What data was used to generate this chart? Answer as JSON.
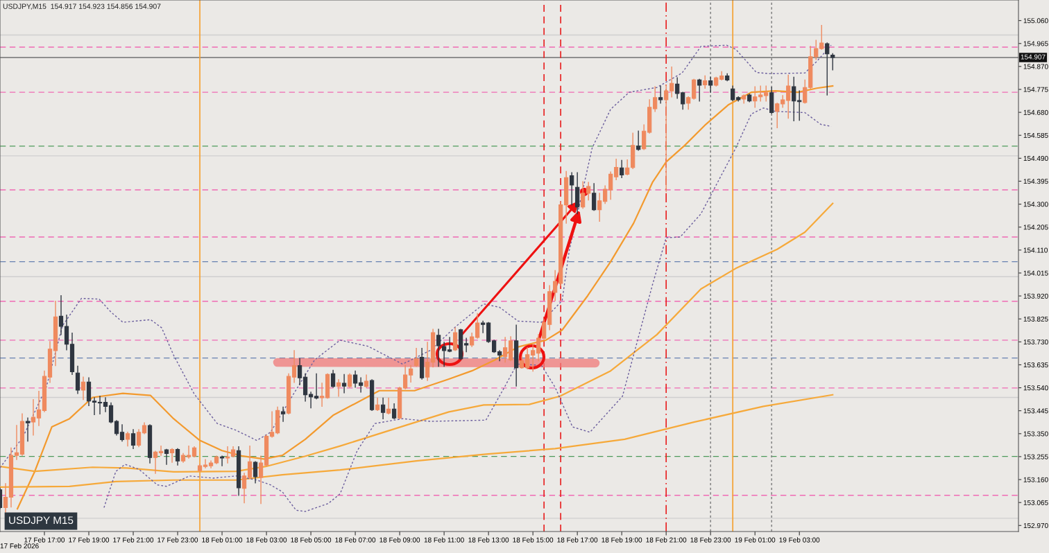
{
  "chart_data": {
    "type": "candlestick",
    "title": "USDJPY,M15  154.917 154.923 154.856 154.907",
    "annotations": [
      "USDJPY M15",
      "17 Feb 2026"
    ],
    "x": [
      "2026-02-17T15:00",
      "2026-02-17T15:15",
      "2026-02-17T15:30",
      "2026-02-17T15:45",
      "2026-02-17T16:00",
      "2026-02-17T16:15",
      "2026-02-17T16:30",
      "2026-02-17T16:45",
      "2026-02-17T17:00",
      "2026-02-17T17:15",
      "2026-02-17T17:30",
      "2026-02-17T17:45",
      "2026-02-17T18:00",
      "2026-02-17T18:15",
      "2026-02-17T18:30",
      "2026-02-17T18:45",
      "2026-02-17T19:00",
      "2026-02-17T19:15",
      "2026-02-17T19:30",
      "2026-02-17T19:45",
      "2026-02-17T20:00",
      "2026-02-17T20:15",
      "2026-02-17T20:30",
      "2026-02-17T20:45",
      "2026-02-17T21:00",
      "2026-02-17T21:15",
      "2026-02-17T21:30",
      "2026-02-17T21:45",
      "2026-02-17T22:00",
      "2026-02-17T22:15",
      "2026-02-17T22:30",
      "2026-02-17T22:45",
      "2026-02-17T23:00",
      "2026-02-17T23:15",
      "2026-02-17T23:30",
      "2026-02-17T23:45",
      "2026-02-18T00:00",
      "2026-02-18T00:15",
      "2026-02-18T00:30",
      "2026-02-18T00:45",
      "2026-02-18T01:00",
      "2026-02-18T01:15",
      "2026-02-18T01:30",
      "2026-02-18T01:45",
      "2026-02-18T02:00",
      "2026-02-18T02:15",
      "2026-02-18T02:30",
      "2026-02-18T02:45",
      "2026-02-18T03:00",
      "2026-02-18T03:15",
      "2026-02-18T03:30",
      "2026-02-18T03:45",
      "2026-02-18T04:00",
      "2026-02-18T04:15",
      "2026-02-18T04:30",
      "2026-02-18T04:45",
      "2026-02-18T05:00",
      "2026-02-18T05:15",
      "2026-02-18T05:30",
      "2026-02-18T05:45",
      "2026-02-18T06:00",
      "2026-02-18T06:15",
      "2026-02-18T06:30",
      "2026-02-18T06:45",
      "2026-02-18T07:00",
      "2026-02-18T07:15",
      "2026-02-18T07:30",
      "2026-02-18T07:45",
      "2026-02-18T08:00",
      "2026-02-18T08:15",
      "2026-02-18T08:30",
      "2026-02-18T08:45",
      "2026-02-18T09:00",
      "2026-02-18T09:15",
      "2026-02-18T09:30",
      "2026-02-18T09:45",
      "2026-02-18T10:00",
      "2026-02-18T10:15",
      "2026-02-18T10:30",
      "2026-02-18T10:45",
      "2026-02-18T11:00",
      "2026-02-18T11:15",
      "2026-02-18T11:30",
      "2026-02-18T11:45",
      "2026-02-18T12:00",
      "2026-02-18T12:15",
      "2026-02-18T12:30",
      "2026-02-18T12:45",
      "2026-02-18T13:00",
      "2026-02-18T13:15",
      "2026-02-18T13:30",
      "2026-02-18T13:45",
      "2026-02-18T14:00",
      "2026-02-18T14:15",
      "2026-02-18T14:30",
      "2026-02-18T14:45",
      "2026-02-18T15:00",
      "2026-02-18T15:15",
      "2026-02-18T15:30",
      "2026-02-18T15:45",
      "2026-02-18T16:00",
      "2026-02-18T16:15",
      "2026-02-18T16:30",
      "2026-02-18T16:45",
      "2026-02-18T17:00",
      "2026-02-18T17:15",
      "2026-02-18T17:30",
      "2026-02-18T17:45",
      "2026-02-18T18:00",
      "2026-02-18T18:15",
      "2026-02-18T18:30",
      "2026-02-18T18:45",
      "2026-02-18T19:00",
      "2026-02-18T19:15",
      "2026-02-18T19:30",
      "2026-02-18T19:45",
      "2026-02-18T20:00",
      "2026-02-18T20:15",
      "2026-02-18T20:30",
      "2026-02-18T20:45",
      "2026-02-18T21:00",
      "2026-02-18T21:15",
      "2026-02-18T21:30",
      "2026-02-18T21:45",
      "2026-02-18T22:00",
      "2026-02-18T22:15",
      "2026-02-18T22:30",
      "2026-02-18T22:45",
      "2026-02-18T23:00",
      "2026-02-18T23:15",
      "2026-02-18T23:30",
      "2026-02-18T23:45",
      "2026-02-19T00:00",
      "2026-02-19T00:15",
      "2026-02-19T00:30",
      "2026-02-19T00:45",
      "2026-02-19T01:00",
      "2026-02-19T01:15",
      "2026-02-19T01:30",
      "2026-02-19T01:45",
      "2026-02-19T02:00",
      "2026-02-19T02:15",
      "2026-02-19T02:30",
      "2026-02-19T02:45",
      "2026-02-19T03:00",
      "2026-02-19T03:15",
      "2026-02-19T03:30",
      "2026-02-19T03:45",
      "2026-02-19T04:00",
      "2026-02-19T04:15",
      "2026-02-19T04:30"
    ],
    "ohlc": [
      [
        153.118,
        153.125,
        153.04,
        153.044
      ],
      [
        153.044,
        153.143,
        153.025,
        153.087
      ],
      [
        153.087,
        153.291,
        153.047,
        153.26
      ],
      [
        153.26,
        153.384,
        153.243,
        153.271
      ],
      [
        153.265,
        153.432,
        153.26,
        153.401
      ],
      [
        153.401,
        153.415,
        153.319,
        153.395
      ],
      [
        153.398,
        153.491,
        153.344,
        153.418
      ],
      [
        153.415,
        153.525,
        153.384,
        153.449
      ],
      [
        153.446,
        153.609,
        153.441,
        153.587
      ],
      [
        153.584,
        153.731,
        153.562,
        153.7
      ],
      [
        153.694,
        153.898,
        153.632,
        153.833
      ],
      [
        153.836,
        153.921,
        153.76,
        153.794
      ],
      [
        153.794,
        153.841,
        153.697,
        153.72
      ],
      [
        153.72,
        153.766,
        153.595,
        153.606
      ],
      [
        153.601,
        153.629,
        153.516,
        153.53
      ],
      [
        153.53,
        153.584,
        153.491,
        153.564
      ],
      [
        153.564,
        153.581,
        153.466,
        153.485
      ],
      [
        153.485,
        153.499,
        153.429,
        153.48
      ],
      [
        153.48,
        153.505,
        153.432,
        153.477
      ],
      [
        153.48,
        153.499,
        153.441,
        153.463
      ],
      [
        153.466,
        153.477,
        153.395,
        153.398
      ],
      [
        153.401,
        153.404,
        153.344,
        153.35
      ],
      [
        153.356,
        153.387,
        153.319,
        153.325
      ],
      [
        153.327,
        153.356,
        153.299,
        153.35
      ],
      [
        153.35,
        153.367,
        153.288,
        153.302
      ],
      [
        153.302,
        153.367,
        153.296,
        153.356
      ],
      [
        153.353,
        153.395,
        153.35,
        153.384
      ],
      [
        153.384,
        153.387,
        153.229,
        153.251
      ],
      [
        153.251,
        153.277,
        153.186,
        153.274
      ],
      [
        153.271,
        153.299,
        153.26,
        153.277
      ],
      [
        153.283,
        153.285,
        153.223,
        153.268
      ],
      [
        153.271,
        153.288,
        153.232,
        153.285
      ],
      [
        153.285,
        153.288,
        153.22,
        153.237
      ],
      [
        153.237,
        153.268,
        153.232,
        153.26
      ],
      [
        153.254,
        153.299,
        153.249,
        153.26
      ],
      [
        153.257,
        153.296,
        153.254,
        153.291
      ],
      [
        153.197,
        153.223,
        153.194,
        153.217
      ],
      [
        153.214,
        153.243,
        153.209,
        153.22
      ],
      [
        153.217,
        153.237,
        153.209,
        153.229
      ],
      [
        153.229,
        153.257,
        153.226,
        153.254
      ],
      [
        153.254,
        153.257,
        153.217,
        153.249
      ],
      [
        153.249,
        153.296,
        153.229,
        153.254
      ],
      [
        153.257,
        153.296,
        153.254,
        153.283
      ],
      [
        153.28,
        153.296,
        153.095,
        153.126
      ],
      [
        153.124,
        153.186,
        153.064,
        153.175
      ],
      [
        153.169,
        153.299,
        153.166,
        153.234
      ],
      [
        153.232,
        153.234,
        153.146,
        153.172
      ],
      [
        153.169,
        153.257,
        153.061,
        153.229
      ],
      [
        153.22,
        153.344,
        153.217,
        153.339
      ],
      [
        153.339,
        153.441,
        153.336,
        153.356
      ],
      [
        153.353,
        153.46,
        153.35,
        153.446
      ],
      [
        153.441,
        153.46,
        153.401,
        153.432
      ],
      [
        153.435,
        153.598,
        153.432,
        153.587
      ],
      [
        153.584,
        153.694,
        153.562,
        153.632
      ],
      [
        153.632,
        153.66,
        153.553,
        153.581
      ],
      [
        153.584,
        153.598,
        153.485,
        153.511
      ],
      [
        153.513,
        153.522,
        153.457,
        153.502
      ],
      [
        153.505,
        153.598,
        153.494,
        153.497
      ],
      [
        153.499,
        153.559,
        153.463,
        153.505
      ],
      [
        153.499,
        153.598,
        153.497,
        153.595
      ],
      [
        153.598,
        153.612,
        153.542,
        153.545
      ],
      [
        153.545,
        153.573,
        153.505,
        153.561
      ],
      [
        153.559,
        153.595,
        153.519,
        153.547
      ],
      [
        153.545,
        153.598,
        153.542,
        153.593
      ],
      [
        153.593,
        153.609,
        153.542,
        153.559
      ],
      [
        153.561,
        153.581,
        153.522,
        153.55
      ],
      [
        153.545,
        153.593,
        153.542,
        153.567
      ],
      [
        153.57,
        153.573,
        153.446,
        153.449
      ],
      [
        153.449,
        153.497,
        153.446,
        153.469
      ],
      [
        153.469,
        153.497,
        153.412,
        153.438
      ],
      [
        153.435,
        153.497,
        153.432,
        153.452
      ],
      [
        153.452,
        153.474,
        153.412,
        153.415
      ],
      [
        153.415,
        153.542,
        153.412,
        153.539
      ],
      [
        153.539,
        153.632,
        153.536,
        153.593
      ],
      [
        153.593,
        153.632,
        153.564,
        153.618
      ],
      [
        153.632,
        153.703,
        153.629,
        153.66
      ],
      [
        153.666,
        153.703,
        153.576,
        153.581
      ],
      [
        153.584,
        153.728,
        153.57,
        153.646
      ],
      [
        153.646,
        153.782,
        153.626,
        153.768
      ],
      [
        153.757,
        153.782,
        153.629,
        153.714
      ],
      [
        153.711,
        153.728,
        153.629,
        153.694
      ],
      [
        153.697,
        153.748,
        153.689,
        153.691
      ],
      [
        153.697,
        153.788,
        153.694,
        153.768
      ],
      [
        153.78,
        153.782,
        153.657,
        153.66
      ],
      [
        153.723,
        153.745,
        153.689,
        153.717
      ],
      [
        153.717,
        153.766,
        153.711,
        153.751
      ],
      [
        153.748,
        153.847,
        153.745,
        153.808
      ],
      [
        153.808,
        153.816,
        153.768,
        153.802
      ],
      [
        153.808,
        153.81,
        153.728,
        153.731
      ],
      [
        153.734,
        153.737,
        153.686,
        153.689
      ],
      [
        153.689,
        153.694,
        153.652,
        153.675
      ],
      [
        153.669,
        153.748,
        153.646,
        153.706
      ],
      [
        153.655,
        153.751,
        153.652,
        153.734
      ],
      [
        153.734,
        153.799,
        153.547,
        153.623
      ],
      [
        153.623,
        153.669,
        153.621,
        153.652
      ],
      [
        153.623,
        153.706,
        153.618,
        153.677
      ],
      [
        153.675,
        153.717,
        153.609,
        153.694
      ],
      [
        153.683,
        153.76,
        153.652,
        153.745
      ],
      [
        153.745,
        153.822,
        153.743,
        153.81
      ],
      [
        153.802,
        153.963,
        153.78,
        153.938
      ],
      [
        153.935,
        154.025,
        153.901,
        153.98
      ],
      [
        153.972,
        154.308,
        153.963,
        154.297
      ],
      [
        154.297,
        154.435,
        154.221,
        154.41
      ],
      [
        154.418,
        154.43,
        154.297,
        154.379
      ],
      [
        154.37,
        154.43,
        154.26,
        154.288
      ],
      [
        154.288,
        154.393,
        154.283,
        154.345
      ],
      [
        154.345,
        154.39,
        154.317,
        154.373
      ],
      [
        154.345,
        154.385,
        154.274,
        154.277
      ],
      [
        154.277,
        154.345,
        154.229,
        154.314
      ],
      [
        154.311,
        154.376,
        154.303,
        154.362
      ],
      [
        154.359,
        154.433,
        154.32,
        154.424
      ],
      [
        154.413,
        154.486,
        154.401,
        154.452
      ],
      [
        154.45,
        154.481,
        154.41,
        154.421
      ],
      [
        154.424,
        154.483,
        154.421,
        154.45
      ],
      [
        154.452,
        154.594,
        154.447,
        154.543
      ],
      [
        154.54,
        154.602,
        154.523,
        154.526
      ],
      [
        154.529,
        154.628,
        154.526,
        154.602
      ],
      [
        154.597,
        154.732,
        154.594,
        154.701
      ],
      [
        154.695,
        154.786,
        154.684,
        154.741
      ],
      [
        154.741,
        154.789,
        154.718,
        154.732
      ],
      [
        154.732,
        154.792,
        154.353,
        154.769
      ],
      [
        154.769,
        154.868,
        154.744,
        154.8
      ],
      [
        154.797,
        154.823,
        154.738,
        154.758
      ],
      [
        154.761,
        154.763,
        154.693,
        154.715
      ],
      [
        154.718,
        154.744,
        154.693,
        154.741
      ],
      [
        154.738,
        154.817,
        154.735,
        154.814
      ],
      [
        154.814,
        154.817,
        154.727,
        154.792
      ],
      [
        154.794,
        154.831,
        154.78,
        154.811
      ],
      [
        154.811,
        154.825,
        154.763,
        154.792
      ],
      [
        154.792,
        154.825,
        154.789,
        154.823
      ],
      [
        154.817,
        154.848,
        154.814,
        154.831
      ],
      [
        154.831,
        154.84,
        154.811,
        154.814
      ],
      [
        154.777,
        154.789,
        154.729,
        154.732
      ],
      [
        154.741,
        154.744,
        154.727,
        154.732
      ],
      [
        154.735,
        154.752,
        154.718,
        154.749
      ],
      [
        154.752,
        154.755,
        154.724,
        154.727
      ],
      [
        154.727,
        154.786,
        154.701,
        154.744
      ],
      [
        154.744,
        154.789,
        154.727,
        154.752
      ],
      [
        154.749,
        154.789,
        154.727,
        154.761
      ],
      [
        154.761,
        154.783,
        154.676,
        154.679
      ],
      [
        154.684,
        154.718,
        154.616,
        154.715
      ],
      [
        154.715,
        154.749,
        154.701,
        154.732
      ],
      [
        154.729,
        154.834,
        154.656,
        154.789
      ],
      [
        154.786,
        154.825,
        154.645,
        154.727
      ],
      [
        154.729,
        154.769,
        154.647,
        154.724
      ],
      [
        154.721,
        154.814,
        154.718,
        154.783
      ],
      [
        154.783,
        154.953,
        154.78,
        154.91
      ],
      [
        154.91,
        154.978,
        154.899,
        154.944
      ],
      [
        154.944,
        155.04,
        154.941,
        154.967
      ],
      [
        154.964,
        154.967,
        154.752,
        154.922
      ],
      [
        154.917,
        154.923,
        154.856,
        154.907
      ]
    ],
    "colors": [
      "#2f3640",
      "#ef8a5f",
      "#ef8a5f",
      "#ef8a5f",
      "#ef8a5f",
      "#2f3640",
      "#ef8a5f",
      "#ef8a5f",
      "#ef8a5f",
      "#ef8a5f",
      "#ef8a5f",
      "#2f3640",
      "#2f3640",
      "#2f3640",
      "#2f3640",
      "#ef8a5f",
      "#2f3640",
      "#2f3640",
      "#2f3640",
      "#2f3640",
      "#2f3640",
      "#2f3640",
      "#2f3640",
      "#ef8a5f",
      "#2f3640",
      "#ef8a5f",
      "#ef8a5f",
      "#2f3640",
      "#ef8a5f",
      "#ef8a5f",
      "#2f3640",
      "#ef8a5f",
      "#2f3640",
      "#ef8a5f",
      "#ef8a5f",
      "#ef8a5f",
      "#ef8a5f",
      "#ef8a5f",
      "#ef8a5f",
      "#ef8a5f",
      "#2f3640",
      "#ef8a5f",
      "#ef8a5f",
      "#2f3640",
      "#ef8a5f",
      "#ef8a5f",
      "#2f3640",
      "#ef8a5f",
      "#ef8a5f",
      "#ef8a5f",
      "#ef8a5f",
      "#2f3640",
      "#ef8a5f",
      "#ef8a5f",
      "#2f3640",
      "#2f3640",
      "#2f3640",
      "#2f3640",
      "#ef8a5f",
      "#ef8a5f",
      "#2f3640",
      "#ef8a5f",
      "#2f3640",
      "#ef8a5f",
      "#2f3640",
      "#2f3640",
      "#ef8a5f",
      "#2f3640",
      "#ef8a5f",
      "#2f3640",
      "#ef8a5f",
      "#2f3640",
      "#ef8a5f",
      "#ef8a5f",
      "#ef8a5f",
      "#ef8a5f",
      "#2f3640",
      "#ef8a5f",
      "#ef8a5f",
      "#2f3640",
      "#2f3640",
      "#2f3640",
      "#ef8a5f",
      "#2f3640",
      "#2f3640",
      "#ef8a5f",
      "#ef8a5f",
      "#2f3640",
      "#2f3640",
      "#2f3640",
      "#2f3640",
      "#ef8a5f",
      "#ef8a5f",
      "#2f3640",
      "#ef8a5f",
      "#ef8a5f",
      "#ef8a5f",
      "#ef8a5f",
      "#ef8a5f",
      "#ef8a5f",
      "#ef8a5f",
      "#ef8a5f",
      "#ef8a5f",
      "#2f3640",
      "#2f3640",
      "#ef8a5f",
      "#ef8a5f",
      "#2f3640",
      "#ef8a5f",
      "#ef8a5f",
      "#ef8a5f",
      "#ef8a5f",
      "#2f3640",
      "#ef8a5f",
      "#ef8a5f",
      "#2f3640",
      "#ef8a5f",
      "#ef8a5f",
      "#ef8a5f",
      "#2f3640",
      "#ef8a5f",
      "#ef8a5f",
      "#2f3640",
      "#2f3640",
      "#ef8a5f",
      "#ef8a5f",
      "#2f3640",
      "#ef8a5f",
      "#2f3640",
      "#ef8a5f",
      "#ef8a5f",
      "#2f3640",
      "#2f3640",
      "#2f3640",
      "#ef8a5f",
      "#2f3640",
      "#ef8a5f",
      "#ef8a5f",
      "#ef8a5f",
      "#2f3640",
      "#ef8a5f",
      "#ef8a5f",
      "#ef8a5f",
      "#2f3640",
      "#2f3640",
      "#ef8a5f",
      "#ef8a5f",
      "#ef8a5f",
      "#ef8a5f",
      "#2f3640",
      "#2f3640"
    ],
    "series": [
      {
        "type": "line",
        "color": "#f39a2e",
        "line_style": "solid",
        "x": [
          "2026-02-17T15:47",
          "2026-02-17T16:34",
          "2026-02-17T17:20",
          "2026-02-17T18:08",
          "2026-02-17T19:10",
          "2026-02-17T20:32",
          "2026-02-17T21:47",
          "2026-02-17T22:49",
          "2026-02-18T00:00",
          "2026-02-18T01:00",
          "2026-02-18T01:56",
          "2026-02-18T02:53",
          "2026-02-18T03:43",
          "2026-02-18T04:45",
          "2026-02-18T06:00",
          "2026-02-18T08:05",
          "2026-02-18T09:40",
          "2026-02-18T11:13",
          "2026-02-18T12:15",
          "2026-02-18T13:17",
          "2026-02-18T14:20",
          "2026-02-18T15:35",
          "2026-02-18T16:19",
          "2026-02-18T17:28",
          "2026-02-18T18:30",
          "2026-02-18T19:32",
          "2026-02-18T20:23",
          "2026-02-18T21:00",
          "2026-02-18T21:50",
          "2026-02-18T22:47",
          "2026-02-18T23:49",
          "2026-02-19T00:50",
          "2026-02-19T01:55",
          "2026-02-19T02:56",
          "2026-02-19T03:47",
          "2026-02-19T04:30"
        ],
        "values": [
          153.039,
          153.194,
          153.378,
          153.412,
          153.5,
          153.517,
          153.508,
          153.412,
          153.322,
          153.28,
          153.257,
          153.245,
          153.26,
          153.327,
          153.426,
          153.528,
          153.528,
          153.576,
          153.61,
          153.655,
          153.709,
          153.737,
          153.779,
          153.921,
          154.062,
          154.221,
          154.39,
          154.475,
          154.543,
          154.63,
          154.712,
          154.763,
          154.769,
          154.763,
          154.78,
          154.789
        ]
      },
      {
        "type": "line",
        "color": "#f6a93a",
        "line_style": "solid",
        "x": [
          "2026-02-17T15:00",
          "2026-02-17T16:34",
          "2026-02-17T19:10",
          "2026-02-17T20:43",
          "2026-02-17T22:49",
          "2026-02-18T01:38",
          "2026-02-18T02:58",
          "2026-02-18T04:45",
          "2026-02-18T06:19",
          "2026-02-18T09:32",
          "2026-02-18T11:13",
          "2026-02-18T12:47",
          "2026-02-18T14:50",
          "2026-02-18T16:13",
          "2026-02-18T18:30",
          "2026-02-18T20:35",
          "2026-02-18T22:34",
          "2026-02-19T00:08",
          "2026-02-19T02:00",
          "2026-02-19T03:15",
          "2026-02-19T04:30"
        ],
        "values": [
          153.214,
          153.194,
          153.211,
          153.208,
          153.192,
          153.194,
          153.214,
          153.257,
          153.299,
          153.392,
          153.44,
          153.469,
          153.471,
          153.505,
          153.61,
          153.76,
          153.949,
          154.034,
          154.113,
          154.184,
          154.303
        ]
      },
      {
        "type": "line",
        "color": "#f6a93a",
        "line_style": "solid",
        "x": [
          "2026-02-17T15:00",
          "2026-02-17T18:08",
          "2026-02-17T20:13",
          "2026-02-17T22:49",
          "2026-02-18T01:38",
          "2026-02-18T03:43",
          "2026-02-18T06:19",
          "2026-02-18T09:45",
          "2026-02-18T12:53",
          "2026-02-18T16:00",
          "2026-02-18T19:08",
          "2026-02-18T22:15",
          "2026-02-19T01:23",
          "2026-02-19T04:30"
        ],
        "values": [
          153.129,
          153.132,
          153.152,
          153.158,
          153.158,
          153.18,
          153.2,
          153.237,
          153.265,
          153.288,
          153.327,
          153.398,
          153.463,
          153.511
        ]
      },
      {
        "type": "line",
        "color": "#6c5f9e",
        "line_style": "dotted",
        "x": [
          "2026-02-17T15:00",
          "2026-02-17T16:02",
          "2026-02-17T17:05",
          "2026-02-17T17:49",
          "2026-02-17T18:40",
          "2026-02-17T19:28",
          "2026-02-17T20:00",
          "2026-02-17T20:32",
          "2026-02-17T21:47",
          "2026-02-17T22:17",
          "2026-02-17T22:49",
          "2026-02-17T23:45",
          "2026-02-18T00:47",
          "2026-02-18T01:38",
          "2026-02-18T02:34",
          "2026-02-18T03:11",
          "2026-02-18T04:13",
          "2026-02-18T05:10",
          "2026-02-18T06:19",
          "2026-02-18T07:34",
          "2026-02-18T09:08",
          "2026-02-18T10:23",
          "2026-02-18T11:32",
          "2026-02-18T12:47",
          "2026-02-18T13:30",
          "2026-02-18T14:20",
          "2026-02-18T15:23",
          "2026-02-18T16:19",
          "2026-02-18T16:38",
          "2026-02-18T17:40",
          "2026-02-18T18:30",
          "2026-02-18T19:20",
          "2026-02-18T20:35",
          "2026-02-18T21:43",
          "2026-02-18T22:34",
          "2026-02-18T23:43",
          "2026-02-19T00:08",
          "2026-02-19T01:04",
          "2026-02-19T01:41",
          "2026-02-19T03:15",
          "2026-02-19T03:47",
          "2026-02-19T04:26"
        ],
        "values": [
          153.209,
          153.336,
          153.542,
          153.797,
          153.91,
          153.907,
          153.853,
          153.811,
          153.822,
          153.788,
          153.675,
          153.514,
          153.392,
          153.364,
          153.322,
          153.356,
          153.514,
          153.655,
          153.737,
          153.712,
          153.638,
          153.695,
          153.794,
          153.887,
          153.873,
          153.816,
          153.811,
          153.901,
          154.107,
          154.532,
          154.693,
          154.763,
          154.783,
          154.843,
          154.953,
          154.958,
          154.941,
          154.845,
          154.84,
          154.843,
          154.891,
          154.958
        ]
      },
      {
        "type": "line",
        "color": "#6c5f9e",
        "line_style": "dotted",
        "x": [
          "2026-02-17T19:41",
          "2026-02-17T20:13",
          "2026-02-17T20:38",
          "2026-02-17T21:15",
          "2026-02-17T22:05",
          "2026-02-17T22:30",
          "2026-02-17T23:32",
          "2026-02-18T00:35",
          "2026-02-18T01:38",
          "2026-02-18T02:34",
          "2026-02-18T03:11",
          "2026-02-18T03:43",
          "2026-02-18T04:20",
          "2026-02-18T04:45",
          "2026-02-18T05:47",
          "2026-02-18T06:19",
          "2026-02-18T07:05",
          "2026-02-18T07:53",
          "2026-02-18T09:08",
          "2026-02-18T10:23",
          "2026-02-18T12:53",
          "2026-02-18T13:43",
          "2026-02-18T14:17",
          "2026-02-18T15:23",
          "2026-02-18T16:00",
          "2026-02-18T16:47",
          "2026-02-18T17:34",
          "2026-02-18T19:02",
          "2026-02-18T19:32",
          "2026-02-18T20:23",
          "2026-02-18T21:00",
          "2026-02-18T21:38",
          "2026-02-18T22:34",
          "2026-02-19T00:08",
          "2026-02-19T00:50",
          "2026-02-19T01:23",
          "2026-02-19T01:55",
          "2026-02-19T03:15",
          "2026-02-19T03:58",
          "2026-02-19T04:26"
        ],
        "values": [
          153.044,
          153.194,
          153.223,
          153.203,
          153.138,
          153.132,
          153.175,
          153.166,
          153.175,
          153.158,
          153.138,
          153.109,
          153.033,
          153.028,
          153.061,
          153.101,
          153.279,
          153.392,
          153.412,
          153.401,
          153.406,
          153.542,
          153.638,
          153.633,
          153.542,
          153.378,
          153.356,
          153.505,
          153.675,
          153.966,
          154.161,
          154.164,
          154.26,
          154.532,
          154.673,
          154.698,
          154.684,
          154.679,
          154.63,
          154.622
        ]
      }
    ],
    "ref_lines": [
      {
        "axis": "y",
        "value": 155.0,
        "color": "#cfcfcf",
        "line_style": "solid"
      },
      {
        "axis": "y",
        "value": 154.5,
        "color": "#cfcfcf",
        "line_style": "solid"
      },
      {
        "axis": "y",
        "value": 154.0,
        "color": "#cfcfcf",
        "line_style": "solid"
      },
      {
        "axis": "y",
        "value": 153.5,
        "color": "#cfcfcf",
        "line_style": "solid"
      },
      {
        "axis": "y",
        "value": 153.0,
        "color": "#cfcfcf",
        "line_style": "solid"
      },
      {
        "axis": "y",
        "value": 154.95,
        "color": "#f06ab4",
        "line_style": "dashed"
      },
      {
        "axis": "y",
        "value": 154.763,
        "color": "#f06ab4",
        "line_style": "dashed"
      },
      {
        "axis": "y",
        "value": 154.359,
        "color": "#f06ab4",
        "line_style": "dashed"
      },
      {
        "axis": "y",
        "value": 154.164,
        "color": "#f06ab4",
        "line_style": "dashed"
      },
      {
        "axis": "y",
        "value": 153.898,
        "color": "#f06ab4",
        "line_style": "dashed"
      },
      {
        "axis": "y",
        "value": 153.737,
        "color": "#f06ab4",
        "line_style": "dashed"
      },
      {
        "axis": "y",
        "value": 153.539,
        "color": "#f06ab4",
        "line_style": "dashed"
      },
      {
        "axis": "y",
        "value": 153.095,
        "color": "#f06ab4",
        "line_style": "dashed"
      },
      {
        "axis": "y",
        "value": 154.54,
        "color": "#4c9a5a",
        "line_style": "dashed"
      },
      {
        "axis": "y",
        "value": 153.256,
        "color": "#4c9a5a",
        "line_style": "dashed"
      },
      {
        "axis": "y",
        "value": 154.062,
        "color": "#6680b0",
        "line_style": "dashed"
      },
      {
        "axis": "y",
        "value": 153.663,
        "color": "#6680b0",
        "line_style": "dashed"
      },
      {
        "axis": "y",
        "value": 154.907,
        "color": "#707070",
        "line_style": "solid",
        "label": "154.907"
      },
      {
        "axis": "x",
        "value": "2026-02-18T00:00",
        "color": "#f5a030",
        "line_style": "solid"
      },
      {
        "axis": "x",
        "value": "2026-02-19T00:00",
        "color": "#f5a030",
        "line_style": "solid"
      },
      {
        "axis": "x",
        "value": "2026-02-18T15:30",
        "color": "#e82020",
        "line_style": "dashed"
      },
      {
        "axis": "x",
        "value": "2026-02-18T16:15",
        "color": "#e82020",
        "line_style": "dashed"
      },
      {
        "axis": "x",
        "value": "2026-02-18T21:00",
        "color": "#e82020",
        "line_style": "dashdot"
      },
      {
        "axis": "x",
        "value": "2026-02-18T23:00",
        "color": "#8a8a8a",
        "line_style": "dotted"
      },
      {
        "axis": "x",
        "value": "2026-02-19T01:45",
        "color": "#8a8a8a",
        "line_style": "dotted"
      }
    ],
    "xlim": [
      "2026-02-17T15:00",
      "2026-02-19T12:52"
    ],
    "xticks": [
      {
        "value": "2026-02-17T17:00",
        "label": "17 Feb 17:00"
      },
      {
        "value": "2026-02-17T19:00",
        "label": "17 Feb 19:00"
      },
      {
        "value": "2026-02-17T21:00",
        "label": "17 Feb 21:00"
      },
      {
        "value": "2026-02-17T23:00",
        "label": "17 Feb 23:00"
      },
      {
        "value": "2026-02-18T01:00",
        "label": "18 Feb 01:00"
      },
      {
        "value": "2026-02-18T03:00",
        "label": "18 Feb 03:00"
      },
      {
        "value": "2026-02-18T05:00",
        "label": "18 Feb 05:00"
      },
      {
        "value": "2026-02-18T07:00",
        "label": "18 Feb 07:00"
      },
      {
        "value": "2026-02-18T09:00",
        "label": "18 Feb 09:00"
      },
      {
        "value": "2026-02-18T11:00",
        "label": "18 Feb 11:00"
      },
      {
        "value": "2026-02-18T13:00",
        "label": "18 Feb 13:00"
      },
      {
        "value": "2026-02-18T15:00",
        "label": "18 Feb 15:00"
      },
      {
        "value": "2026-02-18T17:00",
        "label": "18 Feb 17:00"
      },
      {
        "value": "2026-02-18T19:00",
        "label": "18 Feb 19:00"
      },
      {
        "value": "2026-02-18T21:00",
        "label": "18 Feb 21:00"
      },
      {
        "value": "2026-02-18T23:00",
        "label": "18 Feb 23:00"
      },
      {
        "value": "2026-02-19T01:00",
        "label": "19 Feb 01:00"
      },
      {
        "value": "2026-02-19T03:00",
        "label": "19 Feb 03:00"
      }
    ],
    "ylim": [
      152.945,
      155.145
    ],
    "yticks": [
      {
        "value": 155.06,
        "label": "155.060"
      },
      154.965,
      {
        "value": 154.87,
        "label": "154.870"
      },
      154.775,
      {
        "value": 154.68,
        "label": "154.680"
      },
      154.585,
      {
        "value": 154.49,
        "label": "154.490"
      },
      154.395,
      {
        "value": 154.3,
        "label": "154.300"
      },
      154.205,
      {
        "value": 154.11,
        "label": "154.110"
      },
      154.015,
      {
        "value": 153.92,
        "label": "153.920"
      },
      153.825,
      {
        "value": 153.73,
        "label": "153.730"
      },
      153.635,
      {
        "value": 153.54,
        "label": "153.540"
      },
      153.445,
      {
        "value": 153.35,
        "label": "153.350"
      },
      153.255,
      {
        "value": 153.16,
        "label": "153.160"
      },
      153.065,
      {
        "value": 152.97,
        "label": "152.970"
      }
    ]
  }
}
